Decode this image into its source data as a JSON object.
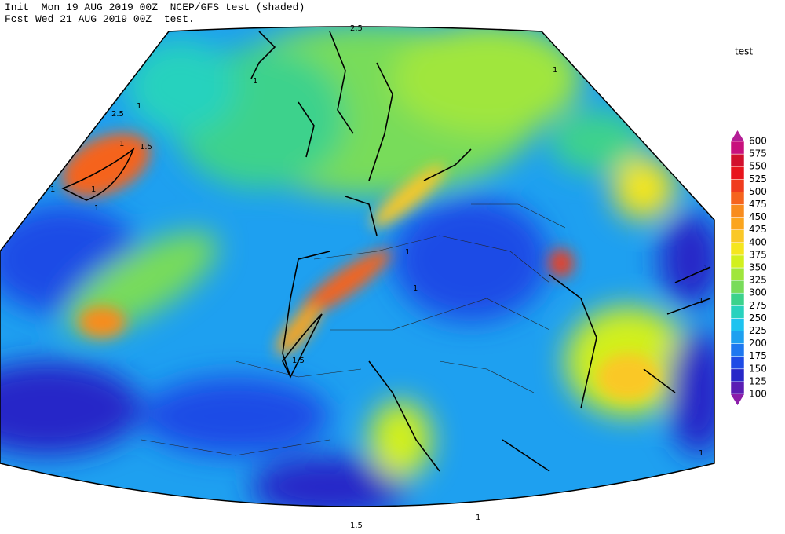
{
  "header": {
    "line1": "Init  Mon 19 AUG 2019 00Z  NCEP/GFS test (shaded)",
    "line2": "Fcst Wed 21 AUG 2019 00Z  test."
  },
  "colorbar": {
    "title": "test",
    "levels": [
      100,
      125,
      150,
      175,
      200,
      225,
      250,
      275,
      300,
      325,
      350,
      375,
      400,
      425,
      450,
      475,
      500,
      525,
      550,
      575,
      600
    ],
    "colors": [
      "#8c1eaa",
      "#5a1eb4",
      "#2828c8",
      "#1e4be6",
      "#1e78f0",
      "#1ea0f0",
      "#1ec3f0",
      "#28d2be",
      "#3cd28c",
      "#78dc5a",
      "#a0e63c",
      "#d2f01e",
      "#f5e61e",
      "#fac828",
      "#fba51e",
      "#f88c1e",
      "#f5641e",
      "#f03c1e",
      "#e8141c",
      "#d2102d",
      "#c8107d",
      "#b41e96"
    ]
  },
  "contour_labels": [
    "2.5",
    "1",
    "2.5",
    "1",
    "1.5",
    "1",
    "1",
    "1",
    "1",
    "1",
    "1",
    "1",
    "1.5",
    "1",
    "1",
    "1",
    "1",
    "1.5"
  ]
}
